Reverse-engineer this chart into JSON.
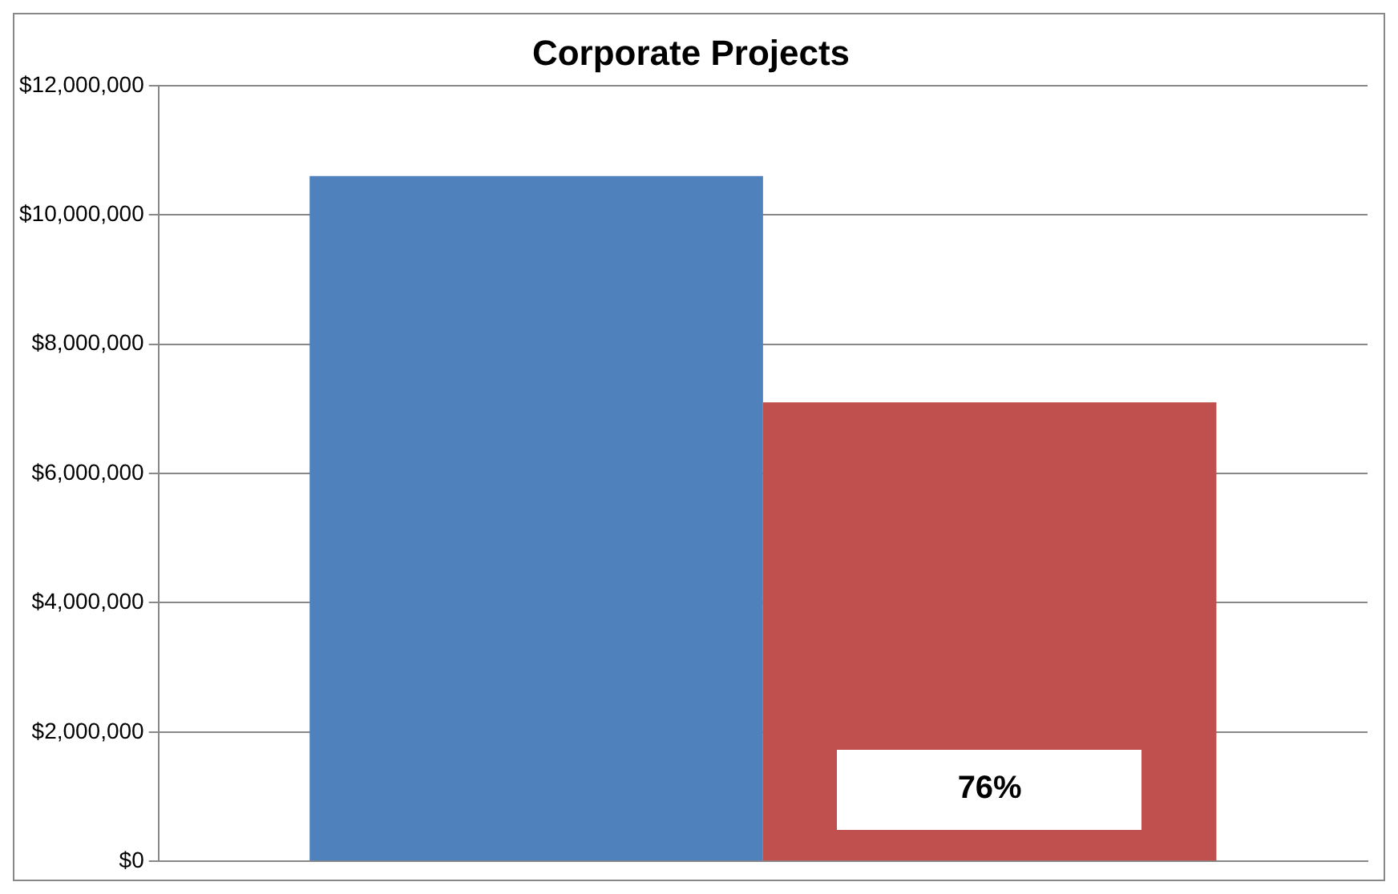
{
  "chart_data": {
    "type": "bar",
    "title": "Corporate Projects",
    "categories": [
      null
    ],
    "series": [
      {
        "color": "#4f81bd",
        "values": [
          10600000
        ]
      },
      {
        "color": "#c0504d",
        "values": [
          7100000
        ]
      }
    ],
    "ylim": [
      0,
      12000000
    ],
    "yticks": [
      {
        "value": 0,
        "label": "$0"
      },
      {
        "value": 2000000,
        "label": "$2,000,000"
      },
      {
        "value": 4000000,
        "label": "$4,000,000"
      },
      {
        "value": 6000000,
        "label": "$6,000,000"
      },
      {
        "value": 8000000,
        "label": "$8,000,000"
      },
      {
        "value": 10000000,
        "label": "$10,000,000"
      },
      {
        "value": 12000000,
        "label": "$12,000,000"
      }
    ],
    "grid": "y",
    "legend": false,
    "annotations": [
      "76%"
    ]
  }
}
